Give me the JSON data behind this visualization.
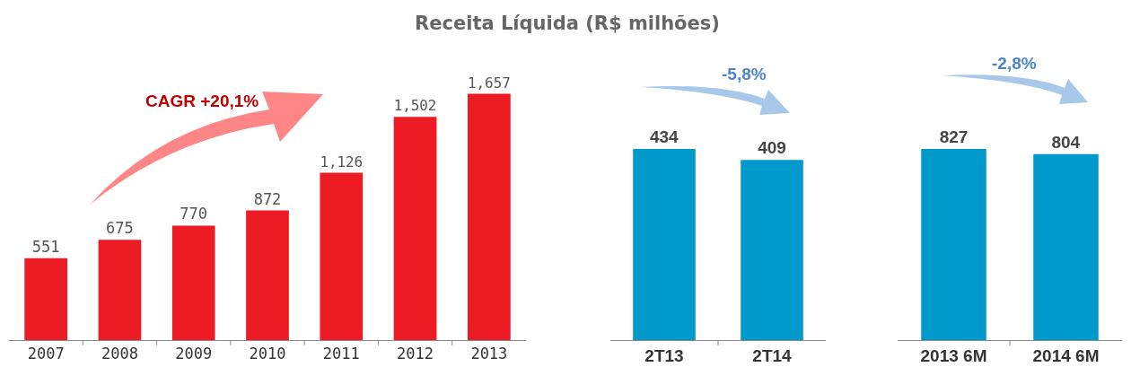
{
  "chart_data": [
    {
      "type": "bar",
      "title": "Receita Líquida (R$ milhões)",
      "categories": [
        "2007",
        "2008",
        "2009",
        "2010",
        "2011",
        "2012",
        "2013"
      ],
      "series": [
        {
          "color": "#ed1c24",
          "values": [
            551,
            675,
            770,
            872,
            1126,
            1502,
            1657
          ],
          "value_labels": [
            "551",
            "675",
            "770",
            "872",
            "1,126",
            "1,502",
            "1,657"
          ]
        }
      ],
      "annotations": [
        "CAGR +20,1%"
      ]
    },
    {
      "type": "bar",
      "categories": [
        "2T13",
        "2T14"
      ],
      "series": [
        {
          "color": "#0099cc",
          "values": [
            434,
            409
          ]
        }
      ],
      "data_labels": true,
      "annotations": [
        "-5,8%"
      ]
    },
    {
      "type": "bar",
      "categories": [
        "2013 6M",
        "2014 6M"
      ],
      "series": [
        {
          "color": "#0099cc",
          "values": [
            827,
            804
          ]
        }
      ],
      "data_labels": true,
      "annotations": [
        "-2,8%"
      ]
    }
  ]
}
